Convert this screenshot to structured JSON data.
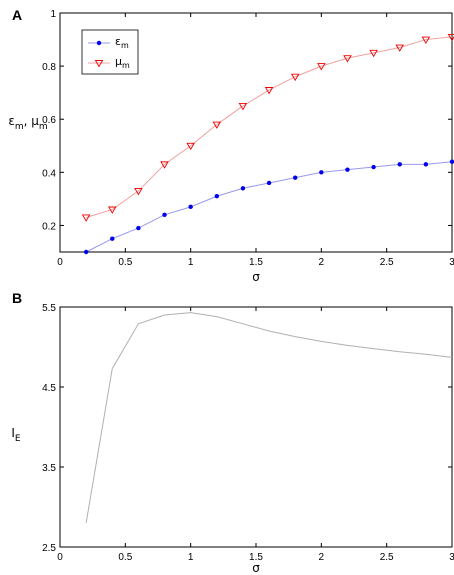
{
  "chart_data": [
    {
      "type": "line",
      "panel_label": "A",
      "xlabel": "σ",
      "ylabel": {
        "main": "ε",
        "sub": "m",
        "sep": ", ",
        "main2": "μ",
        "sub2": "m"
      },
      "xlim": [
        0,
        3
      ],
      "ylim": [
        0.1,
        1.0
      ],
      "xticks": [
        0,
        0.5,
        1,
        1.5,
        2,
        2.5,
        3
      ],
      "xtick_labels": [
        "0",
        "0.5",
        "1",
        "1.5",
        "2",
        "2.5",
        "3"
      ],
      "yticks": [
        0.2,
        0.4,
        0.6,
        0.8,
        1.0
      ],
      "ytick_labels": [
        "0.2",
        "0.4",
        "0.6",
        "0.8",
        "1"
      ],
      "grid": false,
      "legend": "top-left",
      "x": [
        0.2,
        0.4,
        0.6,
        0.8,
        1.0,
        1.2,
        1.4,
        1.6,
        1.8,
        2.0,
        2.2,
        2.4,
        2.6,
        2.8,
        3.0
      ],
      "series": [
        {
          "name": "ε",
          "name_sub": "m",
          "color": "#0000ee",
          "line_color": "#9999ee",
          "marker": "dot",
          "values": [
            0.1,
            0.15,
            0.19,
            0.24,
            0.27,
            0.31,
            0.34,
            0.36,
            0.38,
            0.4,
            0.41,
            0.42,
            0.43,
            0.43,
            0.44
          ]
        },
        {
          "name": "μ",
          "name_sub": "m",
          "color": "#ee0000",
          "line_color": "#f0a0a0",
          "marker": "triangle-down",
          "values": [
            0.23,
            0.26,
            0.33,
            0.43,
            0.5,
            0.58,
            0.65,
            0.71,
            0.76,
            0.8,
            0.83,
            0.85,
            0.87,
            0.9,
            0.91
          ]
        }
      ]
    },
    {
      "type": "line",
      "panel_label": "B",
      "xlabel": "σ",
      "ylabel": {
        "main": "I",
        "sub": "E"
      },
      "xlim": [
        0,
        3
      ],
      "ylim": [
        2.5,
        5.5
      ],
      "xticks": [
        0,
        0.5,
        1,
        1.5,
        2,
        2.5,
        3
      ],
      "xtick_labels": [
        "0",
        "0.5",
        "1",
        "1.5",
        "2",
        "2.5",
        "3"
      ],
      "yticks": [
        2.5,
        3.5,
        4.5,
        5.5
      ],
      "ytick_labels": [
        "2.5",
        "3.5",
        "4.5",
        "5.5"
      ],
      "grid": false,
      "x": [
        0.2,
        0.4,
        0.6,
        0.8,
        1.0,
        1.2,
        1.4,
        1.6,
        1.8,
        2.0,
        2.2,
        2.4,
        2.6,
        2.8,
        3.0
      ],
      "series": [
        {
          "color": "#b0b0b0",
          "values": [
            2.8,
            4.73,
            5.29,
            5.4,
            5.43,
            5.38,
            5.29,
            5.2,
            5.13,
            5.07,
            5.02,
            4.98,
            4.94,
            4.91,
            4.87
          ]
        }
      ]
    }
  ]
}
